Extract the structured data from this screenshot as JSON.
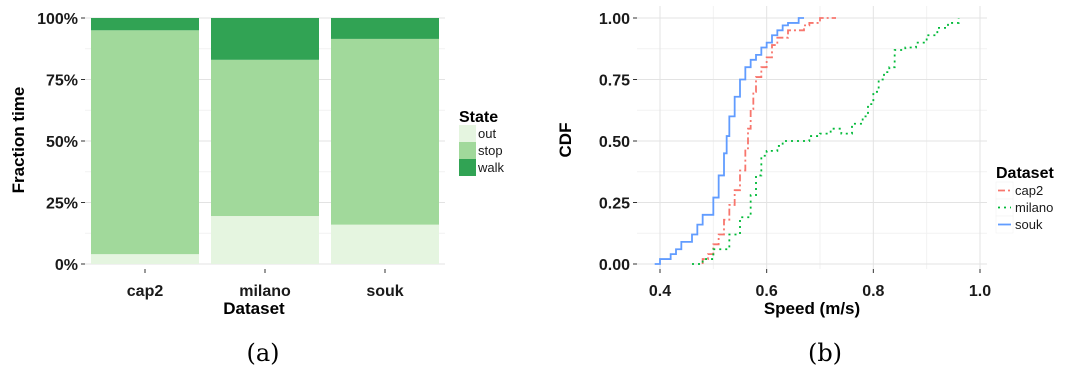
{
  "chart_data": [
    {
      "type": "bar",
      "stacked": true,
      "caption": "(a)",
      "xlabel": "Dataset",
      "ylabel": "Fraction time",
      "categories": [
        "cap2",
        "milano",
        "souk"
      ],
      "series": [
        {
          "name": "out",
          "color": "#e5f5e0",
          "values": [
            0.04,
            0.195,
            0.16
          ]
        },
        {
          "name": "stop",
          "color": "#a1d99b",
          "values": [
            0.91,
            0.635,
            0.755
          ]
        },
        {
          "name": "walk",
          "color": "#31a354",
          "values": [
            0.05,
            0.17,
            0.085
          ]
        }
      ],
      "ylim": [
        0,
        1
      ],
      "yticks": [
        0,
        0.25,
        0.5,
        0.75,
        1.0
      ],
      "ytick_labels": [
        "0%",
        "25%",
        "50%",
        "75%",
        "100%"
      ],
      "legend": {
        "title": "State",
        "position": "right"
      },
      "grid": true
    },
    {
      "type": "line",
      "step": true,
      "caption": "(b)",
      "xlabel": "Speed (m/s)",
      "ylabel": "CDF",
      "xlim": [
        0.37,
        1.0
      ],
      "ylim": [
        0,
        1
      ],
      "xticks": [
        0.4,
        0.6,
        0.8,
        1.0
      ],
      "xtick_labels": [
        "0.4",
        "0.6",
        "0.8",
        "1.0"
      ],
      "yticks": [
        0,
        0.25,
        0.5,
        0.75,
        1.0
      ],
      "ytick_labels": [
        "0.00",
        "0.25",
        "0.50",
        "0.75",
        "1.00"
      ],
      "legend": {
        "title": "Dataset",
        "position": "right"
      },
      "grid": true,
      "series": [
        {
          "name": "cap2",
          "color": "#f8766d",
          "dash": "7,3,2,3",
          "x": [
            0.48,
            0.48,
            0.49,
            0.5,
            0.51,
            0.52,
            0.53,
            0.54,
            0.55,
            0.56,
            0.565,
            0.57,
            0.575,
            0.58,
            0.59,
            0.6,
            0.61,
            0.62,
            0.64,
            0.66,
            0.67,
            0.68,
            0.7,
            0.73
          ],
          "y": [
            0.0,
            0.02,
            0.04,
            0.08,
            0.12,
            0.18,
            0.24,
            0.3,
            0.38,
            0.47,
            0.55,
            0.63,
            0.7,
            0.76,
            0.8,
            0.84,
            0.89,
            0.92,
            0.95,
            0.95,
            0.97,
            0.98,
            1.0,
            1.0
          ]
        },
        {
          "name": "milano",
          "color": "#00ba38",
          "dash": "2,4",
          "x": [
            0.46,
            0.47,
            0.48,
            0.5,
            0.53,
            0.55,
            0.57,
            0.58,
            0.59,
            0.6,
            0.62,
            0.63,
            0.65,
            0.68,
            0.7,
            0.72,
            0.74,
            0.76,
            0.78,
            0.79,
            0.8,
            0.81,
            0.82,
            0.83,
            0.84,
            0.86,
            0.88,
            0.9,
            0.92,
            0.94,
            0.96
          ],
          "y": [
            0.0,
            0.0,
            0.02,
            0.06,
            0.12,
            0.19,
            0.28,
            0.36,
            0.44,
            0.46,
            0.48,
            0.5,
            0.5,
            0.52,
            0.53,
            0.55,
            0.53,
            0.57,
            0.6,
            0.65,
            0.7,
            0.75,
            0.78,
            0.8,
            0.87,
            0.88,
            0.9,
            0.93,
            0.96,
            0.98,
            1.0
          ]
        },
        {
          "name": "souk",
          "color": "#619cff",
          "dash": "",
          "x": [
            0.39,
            0.4,
            0.42,
            0.43,
            0.44,
            0.46,
            0.47,
            0.48,
            0.5,
            0.51,
            0.52,
            0.525,
            0.53,
            0.54,
            0.55,
            0.56,
            0.57,
            0.58,
            0.59,
            0.6,
            0.61,
            0.62,
            0.63,
            0.64,
            0.66,
            0.67
          ],
          "y": [
            0.0,
            0.02,
            0.04,
            0.06,
            0.09,
            0.12,
            0.16,
            0.2,
            0.27,
            0.36,
            0.45,
            0.52,
            0.6,
            0.68,
            0.75,
            0.8,
            0.83,
            0.85,
            0.88,
            0.9,
            0.93,
            0.95,
            0.97,
            0.98,
            1.0,
            1.0
          ]
        }
      ]
    }
  ]
}
